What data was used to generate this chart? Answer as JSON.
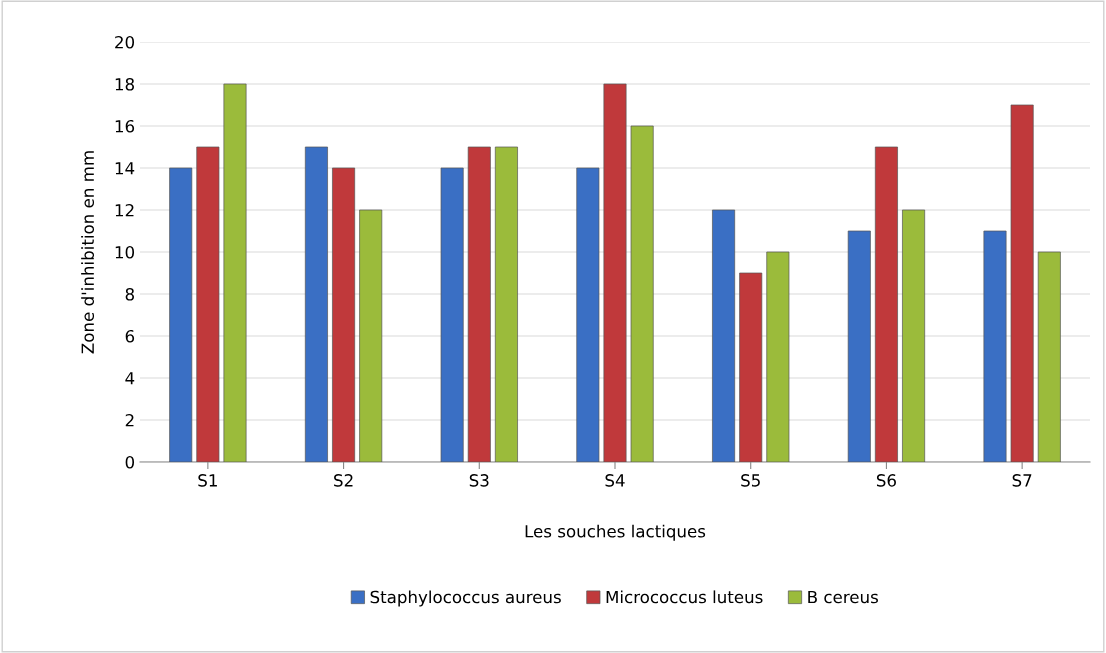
{
  "chart_data": {
    "type": "bar",
    "xlabel": "Les souches lactiques",
    "ylabel": "Zone d'inhibition en mm",
    "categories": [
      "S1",
      "S2",
      "S3",
      "S4",
      "S5",
      "S6",
      "S7"
    ],
    "series": [
      {
        "name": "Staphylococcus aureus",
        "color": "#3a6fc4",
        "values": [
          14,
          15,
          14,
          14,
          12,
          11,
          11
        ]
      },
      {
        "name": "Micrococcus luteus",
        "color": "#c0393b",
        "values": [
          15,
          14,
          15,
          18,
          9,
          15,
          17
        ]
      },
      {
        "name": "B cereus",
        "color": "#9bbb3b",
        "values": [
          18,
          12,
          15,
          16,
          10,
          12,
          10
        ]
      }
    ],
    "ylim": [
      0,
      20
    ],
    "yticks": [
      0,
      2,
      4,
      6,
      8,
      10,
      12,
      14,
      16,
      18,
      20
    ],
    "grid": "y",
    "legend": "bottom"
  }
}
